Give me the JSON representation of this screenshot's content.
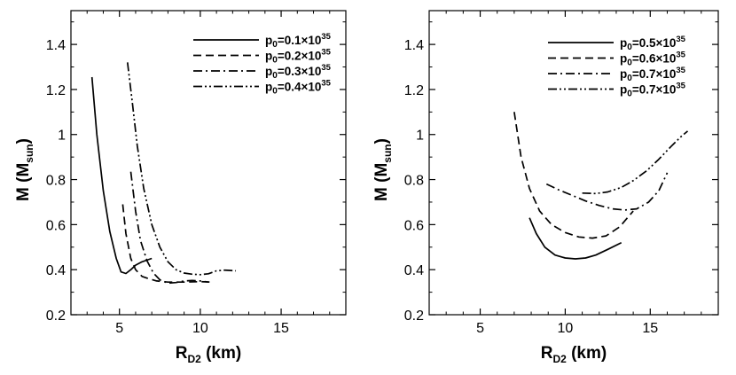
{
  "chart_data": [
    {
      "type": "line",
      "xlabel": {
        "main": "R",
        "sub": "D2",
        "tail": " (km)"
      },
      "ylabel": {
        "main": "M (M",
        "sub": "sun",
        "tail": ")"
      },
      "xlim": [
        2,
        19
      ],
      "ylim": [
        0.2,
        1.55
      ],
      "xticks": [
        5,
        10,
        15
      ],
      "yticks": [
        0.2,
        0.4,
        0.6,
        0.8,
        1,
        1.2,
        1.4
      ],
      "ytick_labels": [
        "0.2",
        "0.4",
        "0.6",
        "0.8",
        "1",
        "1.2",
        "1.4"
      ],
      "legend_position": "top-right",
      "grid": false,
      "series": [
        {
          "name": "p0=0.1×1035",
          "label": {
            "pre": "p",
            "sub": "0",
            "mid": "=0.1×10",
            "sup": "35"
          },
          "dash": "solid",
          "x": [
            3.3,
            3.6,
            4.0,
            4.4,
            4.8,
            5.1,
            5.4,
            5.7,
            6.0,
            6.4,
            7.0
          ],
          "y": [
            1.255,
            1.0,
            0.75,
            0.57,
            0.45,
            0.39,
            0.383,
            0.4,
            0.42,
            0.435,
            0.45
          ]
        },
        {
          "name": "p0=0.2×1035",
          "label": {
            "pre": "p",
            "sub": "0",
            "mid": "=0.2×10",
            "sup": "35"
          },
          "dash": "dashed",
          "x": [
            5.2,
            5.4,
            5.7,
            6.0,
            6.4,
            6.8,
            7.3,
            8.0,
            9.0,
            10.0,
            10.7
          ],
          "y": [
            0.69,
            0.56,
            0.45,
            0.4,
            0.37,
            0.36,
            0.35,
            0.345,
            0.345,
            0.347,
            0.345
          ]
        },
        {
          "name": "p0=0.3×1035",
          "label": {
            "pre": "p",
            "sub": "0",
            "mid": "=0.3×10",
            "sup": "35"
          },
          "dash": "dashdot",
          "x": [
            5.7,
            6.0,
            6.3,
            6.7,
            7.1,
            7.5,
            8.0,
            8.5,
            9.0,
            9.5,
            10.0,
            10.5
          ],
          "y": [
            0.835,
            0.66,
            0.53,
            0.44,
            0.385,
            0.355,
            0.34,
            0.343,
            0.35,
            0.352,
            0.35,
            0.345
          ]
        },
        {
          "name": "p0=0.4×1035",
          "label": {
            "pre": "p",
            "sub": "0",
            "mid": "=0.4×10",
            "sup": "35"
          },
          "dash": "dashdotdot",
          "x": [
            5.5,
            5.8,
            6.1,
            6.5,
            7.0,
            7.5,
            8.0,
            8.5,
            9.0,
            9.5,
            10.0,
            10.5,
            11.0,
            11.5,
            12.2
          ],
          "y": [
            1.32,
            1.14,
            0.95,
            0.76,
            0.6,
            0.5,
            0.435,
            0.4,
            0.385,
            0.38,
            0.378,
            0.382,
            0.395,
            0.398,
            0.395
          ]
        }
      ]
    },
    {
      "type": "line",
      "xlabel": {
        "main": "R",
        "sub": "D2",
        "tail": " (km)"
      },
      "ylabel": {
        "main": "M (M",
        "sub": "sun",
        "tail": ")"
      },
      "xlim": [
        2,
        19
      ],
      "ylim": [
        0.2,
        1.55
      ],
      "xticks": [
        5,
        10,
        15
      ],
      "yticks": [
        0.2,
        0.4,
        0.6,
        0.8,
        1,
        1.2,
        1.4
      ],
      "ytick_labels": [
        "0.2",
        "0.4",
        "0.6",
        "0.8",
        "1",
        "1.2",
        "1.4"
      ],
      "legend_position": "top-right",
      "grid": false,
      "series": [
        {
          "name": "p0=0.5×1035",
          "label": {
            "pre": "p",
            "sub": "0",
            "mid": "=0.5×10",
            "sup": "35"
          },
          "dash": "solid",
          "x": [
            7.9,
            8.3,
            8.8,
            9.4,
            10.0,
            10.6,
            11.2,
            11.8,
            12.5,
            13.3
          ],
          "y": [
            0.63,
            0.56,
            0.5,
            0.465,
            0.452,
            0.448,
            0.452,
            0.465,
            0.49,
            0.52
          ]
        },
        {
          "name": "p0=0.6×1035",
          "label": {
            "pre": "p",
            "sub": "0",
            "mid": "=0.6×10",
            "sup": "35"
          },
          "dash": "dashed",
          "x": [
            7.0,
            7.4,
            7.9,
            8.5,
            9.2,
            10.0,
            10.8,
            11.6,
            12.4,
            13.2,
            14.0
          ],
          "y": [
            1.1,
            0.9,
            0.76,
            0.66,
            0.6,
            0.565,
            0.545,
            0.54,
            0.55,
            0.59,
            0.66
          ]
        },
        {
          "name": "p0=0.7×1035",
          "label": {
            "pre": "p",
            "sub": "0",
            "mid": "=0.7×10",
            "sup": "35"
          },
          "dash": "dashdot",
          "x": [
            8.9,
            9.6,
            10.4,
            11.2,
            12.0,
            12.8,
            13.5,
            14.2,
            14.9,
            15.5,
            16.0
          ],
          "y": [
            0.78,
            0.755,
            0.73,
            0.705,
            0.685,
            0.67,
            0.665,
            0.67,
            0.7,
            0.75,
            0.83
          ]
        },
        {
          "name": "p0=0.7×1035",
          "label": {
            "pre": "p",
            "sub": "0",
            "mid": "=0.7×10",
            "sup": "35"
          },
          "dash": "dashdotdot",
          "x": [
            11.0,
            11.8,
            12.5,
            13.3,
            14.0,
            14.8,
            15.5,
            16.2,
            16.8,
            17.2
          ],
          "y": [
            0.74,
            0.738,
            0.745,
            0.765,
            0.795,
            0.84,
            0.89,
            0.945,
            0.99,
            1.015
          ]
        }
      ]
    }
  ]
}
